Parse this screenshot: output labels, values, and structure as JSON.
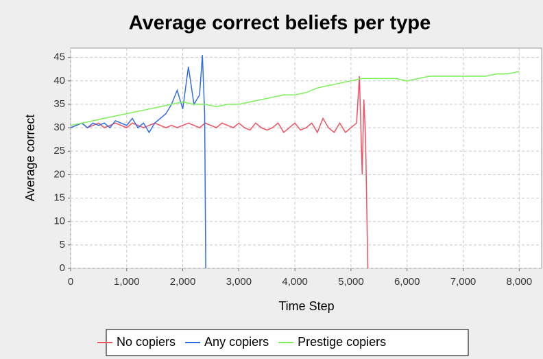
{
  "chart_data": {
    "type": "line",
    "title": "Average correct beliefs per type",
    "x_label": "Time Step",
    "y_label": "Average correct",
    "xlim": [
      0,
      8400
    ],
    "ylim": [
      0,
      47
    ],
    "xticks": [
      0,
      {
        "value": 1000,
        "label": "1,000"
      },
      {
        "value": 2000,
        "label": "2,000"
      },
      {
        "value": 3000,
        "label": "3,000"
      },
      {
        "value": 4000,
        "label": "4,000"
      },
      {
        "value": 5000,
        "label": "5,000"
      },
      {
        "value": 6000,
        "label": "6,000"
      },
      {
        "value": 7000,
        "label": "7,000"
      },
      {
        "value": 8000,
        "label": "8,000"
      }
    ],
    "yticks": [
      0,
      5,
      10,
      15,
      20,
      25,
      30,
      35,
      40,
      45
    ],
    "grid": true,
    "series": [
      {
        "name": "No copiers",
        "color": "#f0505f",
        "x": [
          0,
          100,
          200,
          300,
          400,
          500,
          600,
          700,
          800,
          900,
          1000,
          1100,
          1200,
          1300,
          1400,
          1500,
          1600,
          1700,
          1800,
          1900,
          2000,
          2100,
          2200,
          2300,
          2400,
          2500,
          2600,
          2700,
          2800,
          2900,
          3000,
          3100,
          3200,
          3300,
          3400,
          3500,
          3600,
          3700,
          3800,
          3900,
          4000,
          4100,
          4200,
          4300,
          4400,
          4500,
          4600,
          4700,
          4800,
          4900,
          5000,
          5100,
          5150,
          5200,
          5230,
          5260,
          5300
        ],
        "values": [
          30,
          30.5,
          31,
          30,
          30.5,
          31,
          30,
          30.5,
          31,
          30.5,
          30,
          31,
          30.5,
          30,
          30.5,
          31,
          30.5,
          30,
          30.5,
          30,
          30.5,
          31,
          30.5,
          30,
          31,
          30.5,
          30,
          31,
          30.5,
          30,
          31,
          30,
          29.5,
          31,
          30,
          29.5,
          30,
          31,
          29,
          30,
          31,
          29.5,
          30,
          31,
          29,
          32,
          30,
          29,
          31,
          29,
          30,
          31,
          41,
          20,
          36,
          28,
          0
        ]
      },
      {
        "name": "Any copiers",
        "color": "#2f6de8",
        "x": [
          0,
          100,
          200,
          300,
          400,
          500,
          600,
          700,
          800,
          900,
          1000,
          1100,
          1200,
          1300,
          1400,
          1500,
          1600,
          1700,
          1800,
          1900,
          2000,
          2100,
          2200,
          2300,
          2350,
          2390,
          2410
        ],
        "values": [
          30,
          30.5,
          31,
          30,
          31,
          30.5,
          31,
          30,
          31.5,
          31,
          30.5,
          32,
          30,
          31,
          29,
          31,
          32,
          33,
          35,
          38,
          34,
          43,
          35,
          37,
          45.5,
          33,
          0
        ]
      },
      {
        "name": "Prestige copiers",
        "color": "#7cf05a",
        "x": [
          0,
          200,
          400,
          600,
          800,
          1000,
          1200,
          1400,
          1600,
          1800,
          2000,
          2200,
          2400,
          2600,
          2800,
          3000,
          3200,
          3400,
          3600,
          3800,
          4000,
          4200,
          4400,
          4600,
          4800,
          5000,
          5200,
          5400,
          5600,
          5800,
          6000,
          6200,
          6400,
          6600,
          6800,
          7000,
          7200,
          7400,
          7600,
          7800,
          8000
        ],
        "values": [
          30.5,
          31,
          31.5,
          32,
          32.5,
          33,
          33.5,
          34,
          34.5,
          35,
          35.5,
          35,
          35,
          34.5,
          35,
          35,
          35.5,
          36,
          36.5,
          37,
          37,
          37.5,
          38.5,
          39,
          39.5,
          40,
          40.5,
          40.5,
          40.5,
          40.5,
          40,
          40.5,
          41,
          41,
          41,
          41,
          41,
          41,
          41.5,
          41.5,
          42
        ]
      }
    ]
  }
}
